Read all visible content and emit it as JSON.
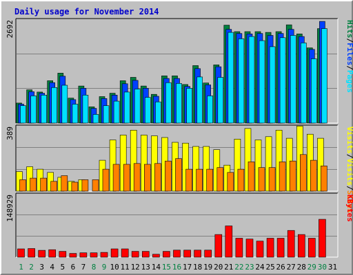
{
  "chart_data": {
    "type": "bar",
    "title": "Daily usage for November 2014",
    "categories": [
      "1",
      "2",
      "3",
      "4",
      "5",
      "6",
      "7",
      "8",
      "9",
      "10",
      "11",
      "12",
      "13",
      "14",
      "15",
      "16",
      "17",
      "18",
      "19",
      "20",
      "21",
      "22",
      "23",
      "24",
      "25",
      "26",
      "27",
      "28",
      "29",
      "30",
      "31"
    ],
    "weekend_days": [
      "1",
      "2",
      "8",
      "9",
      "15",
      "16",
      "22",
      "23",
      "29",
      "30"
    ],
    "colors": {
      "hits": "#008040",
      "files": "#0040ff",
      "pages": "#00e0ff",
      "visits": "#ffff00",
      "sites": "#ff8000",
      "kbytes": "#ff0000",
      "weekday_label": "#000000",
      "weekend_label": "#008040",
      "title": "#0000cc"
    },
    "panels": [
      {
        "id": "top",
        "ymax_label": "2692",
        "ylim": [
          0,
          2692
        ],
        "legend": [
          {
            "text": "Pages",
            "color": "#00e0ff"
          },
          {
            "text": "/",
            "color": "#000000"
          },
          {
            "text": "Files",
            "color": "#0040ff"
          },
          {
            "text": "/",
            "color": "#000000"
          },
          {
            "text": "Hits",
            "color": "#008040"
          }
        ],
        "series": [
          {
            "name": "Hits",
            "color": "#008040",
            "values": [
              530,
              880,
              820,
              1120,
              1320,
              660,
              980,
              430,
              700,
              790,
              1120,
              1210,
              980,
              760,
              1250,
              1250,
              1020,
              1520,
              1060,
              1540,
              2590,
              2420,
              2420,
              2420,
              2400,
              2420,
              2600,
              2360,
              1990,
              2500,
              0
            ]
          },
          {
            "name": "Files",
            "color": "#0040ff",
            "values": [
              500,
              830,
              790,
              1070,
              1240,
              620,
              920,
              390,
              650,
              740,
              1040,
              1130,
              920,
              710,
              1180,
              1180,
              970,
              1440,
              1010,
              1490,
              2480,
              2370,
              2360,
              2370,
              2320,
              2370,
              2480,
              2290,
              1950,
              2690,
              0
            ]
          },
          {
            "name": "Pages",
            "color": "#00e0ff",
            "values": [
              460,
              720,
              740,
              940,
              1000,
              500,
              740,
              230,
              460,
              580,
              820,
              900,
              680,
              560,
              1070,
              1050,
              920,
              1220,
              720,
              1210,
              2400,
              2230,
              2290,
              2180,
              2020,
              2260,
              2320,
              2120,
              1700,
              2500,
              0
            ]
          }
        ]
      },
      {
        "id": "middle",
        "ymax_label": "389",
        "ylim": [
          0,
          389
        ],
        "legend": [
          {
            "text": "Sites",
            "color": "#ff8000"
          },
          {
            "text": "/",
            "color": "#000000"
          },
          {
            "text": "Visits",
            "color": "#ffff00"
          },
          {
            "text": "/",
            "color": "#000000"
          },
          {
            "text": "Visits",
            "color": "#ffff00"
          }
        ],
        "series": [
          {
            "name": "Visits",
            "color": "#ffff00",
            "values": [
              120,
              150,
              135,
              115,
              85,
              60,
              70,
              0,
              190,
              315,
              345,
              375,
              345,
              340,
              330,
              300,
              295,
              275,
              275,
              255,
              160,
              320,
              385,
              315,
              335,
              375,
              325,
              400,
              350,
              325,
              0
            ]
          },
          {
            "name": "Sites",
            "color": "#ff8000",
            "values": [
              70,
              80,
              80,
              60,
              95,
              55,
              70,
              70,
              135,
              165,
              165,
              170,
              165,
              170,
              185,
              200,
              135,
              135,
              135,
              145,
              115,
              135,
              180,
              145,
              145,
              180,
              185,
              225,
              190,
              155,
              0
            ]
          }
        ]
      },
      {
        "id": "bottom",
        "ymax_label": "148929",
        "ylim": [
          0,
          148929
        ],
        "legend": [
          {
            "text": "KBytes",
            "color": "#ff0000"
          }
        ],
        "series": [
          {
            "name": "KBytes",
            "color": "#ff0000",
            "values": [
              20000,
              21000,
              16500,
              18000,
              14000,
              9000,
              10500,
              10500,
              11500,
              20000,
              20000,
              14000,
              14000,
              7000,
              14000,
              17000,
              17000,
              17000,
              17000,
              55000,
              76000,
              46000,
              44000,
              39000,
              46000,
              46000,
              65000,
              55000,
              46000,
              92000,
              0
            ]
          }
        ]
      }
    ]
  }
}
